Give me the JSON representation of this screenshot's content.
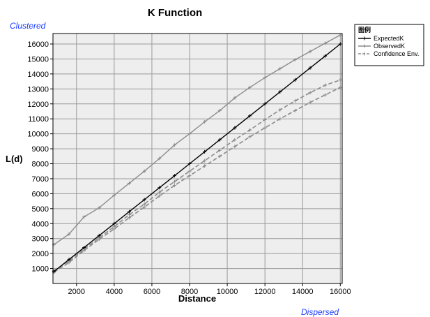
{
  "chart_data": {
    "type": "line",
    "title": "K Function",
    "xlabel": "Distance",
    "ylabel": "L(d)",
    "annotation_top": "Clustered",
    "annotation_bottom": "Dispersed",
    "xlim": [
      750,
      16100
    ],
    "ylim": [
      0,
      16700
    ],
    "xticks": [
      2000,
      4000,
      6000,
      8000,
      10000,
      12000,
      14000,
      16000
    ],
    "yticks": [
      1000,
      2000,
      3000,
      4000,
      5000,
      6000,
      7000,
      8000,
      9000,
      10000,
      11000,
      12000,
      13000,
      14000,
      15000,
      16000
    ],
    "grid": true,
    "legend": {
      "title": "图例",
      "position": "top-right"
    },
    "series": [
      {
        "name": "ExpectedK",
        "style": "solid",
        "color": "#000000",
        "x": [
          800,
          1600,
          2400,
          3200,
          4000,
          4800,
          5600,
          6400,
          7200,
          8000,
          8800,
          9600,
          10400,
          11200,
          12000,
          12800,
          13600,
          14400,
          15200,
          16000
        ],
        "y": [
          800,
          1600,
          2400,
          3200,
          4000,
          4800,
          5600,
          6400,
          7200,
          8000,
          8800,
          9600,
          10400,
          11200,
          12000,
          12800,
          13600,
          14400,
          15200,
          16000
        ]
      },
      {
        "name": "ObservedK",
        "style": "solid",
        "color": "#8c8c8c",
        "x": [
          800,
          1600,
          2400,
          3200,
          4000,
          4800,
          5600,
          6400,
          7200,
          8000,
          8800,
          9600,
          10400,
          11200,
          12000,
          12800,
          13600,
          14400,
          15200,
          16000
        ],
        "y": [
          2600,
          3300,
          4450,
          5050,
          5900,
          6700,
          7500,
          8350,
          9250,
          10000,
          10800,
          11550,
          12400,
          13100,
          13750,
          14350,
          14950,
          15500,
          16050,
          16600
        ]
      },
      {
        "name": "Confidence Env.",
        "style": "dashed",
        "color": "#8c8c8c",
        "x": [
          800,
          1600,
          2400,
          3200,
          4000,
          4800,
          5600,
          6400,
          7200,
          8000,
          8800,
          9600,
          10400,
          11200,
          12000,
          12800,
          13600,
          14400,
          15200,
          16000
        ],
        "y": [
          850,
          1500,
          2300,
          3050,
          3800,
          4600,
          5300,
          6100,
          6800,
          7500,
          8200,
          8900,
          9600,
          10250,
          10950,
          11600,
          12200,
          12750,
          13250,
          13600
        ]
      },
      {
        "name": "Confidence Env.",
        "style": "dashed",
        "color": "#8c8c8c",
        "show_in_legend": false,
        "x": [
          800,
          1600,
          2400,
          3200,
          4000,
          4800,
          5600,
          6400,
          7200,
          8000,
          8800,
          9600,
          10400,
          11200,
          12000,
          12800,
          13600,
          14400,
          15200,
          16000
        ],
        "y": [
          750,
          1400,
          2200,
          2950,
          3650,
          4400,
          5100,
          5850,
          6550,
          7200,
          7850,
          8500,
          9150,
          9800,
          10400,
          11000,
          11550,
          12100,
          12600,
          13100
        ]
      }
    ]
  },
  "colors": {
    "plot_background": "#eeeeee",
    "grid": "#9a9a9a",
    "annotation": "#1a3cff"
  }
}
